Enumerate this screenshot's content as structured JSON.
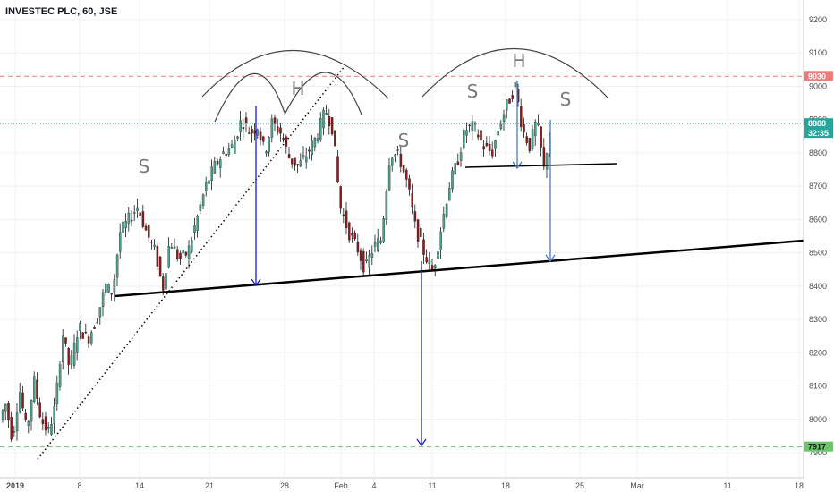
{
  "header": {
    "title": "INVESTEC PLC, 60, JSE"
  },
  "chart_data": {
    "type": "candlestick",
    "title": "INVESTEC PLC, 60, JSE",
    "y_ticks": [
      "7900",
      "8000",
      "8100",
      "8200",
      "8300",
      "8400",
      "8500",
      "8600",
      "8700",
      "8800",
      "8900",
      "9000",
      "9100",
      "9200"
    ],
    "x_ticks": [
      "2019",
      "8",
      "14",
      "21",
      "28",
      "Feb",
      "4",
      "11",
      "18",
      "25",
      "Mar",
      "11",
      "18"
    ],
    "ylim": [
      7850,
      9250
    ],
    "price_levels": [
      {
        "label": "9030",
        "value": 9030,
        "color": "#ef7a7a",
        "style": "dashed"
      },
      {
        "label": "8888",
        "sublabel": "32:35",
        "value": 8888,
        "color": "#26a69a",
        "style": "dotted"
      },
      {
        "label": "7917",
        "value": 7917,
        "color": "#6cc46c",
        "style": "dashed"
      }
    ],
    "annotations": [
      "S",
      "H",
      "S",
      "S",
      "H",
      "S"
    ],
    "colors": {
      "up": "#4a9e8a",
      "down": "#8b1a1a",
      "wick": "#131722",
      "neckline": "#000000",
      "arrow": "#1a1acd"
    }
  }
}
